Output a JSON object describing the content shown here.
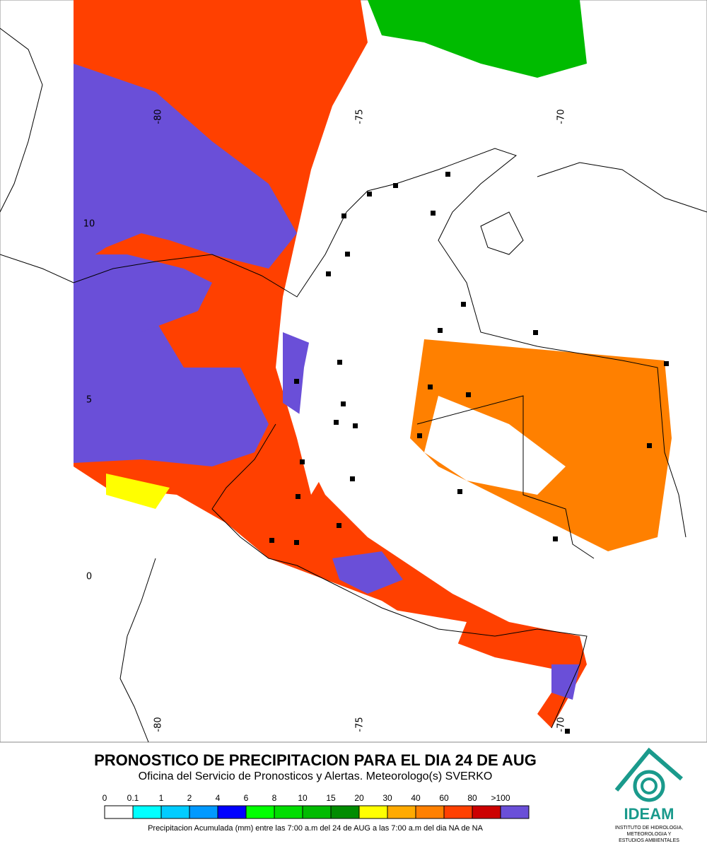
{
  "map": {
    "lon_labels_top": [
      "-80",
      "-75",
      "-70"
    ],
    "lon_labels_bottom": [
      "-80",
      "-75",
      "-70"
    ],
    "lat_labels": [
      "10",
      "5",
      "0"
    ]
  },
  "header": {
    "title": "PRONOSTICO DE PRECIPITACION PARA EL DIA 24 DE AUG",
    "subtitle": "Oficina del Servicio de Pronosticos y Alertas. Meteorologo(s) SVERKO"
  },
  "legend": {
    "items": [
      {
        "label": "0",
        "color": "#ffffff"
      },
      {
        "label": "0.1",
        "color": "#00ffff"
      },
      {
        "label": "1",
        "color": "#00ccff"
      },
      {
        "label": "2",
        "color": "#0099ff"
      },
      {
        "label": "4",
        "color": "#0000ff"
      },
      {
        "label": "6",
        "color": "#00ff00"
      },
      {
        "label": "8",
        "color": "#00dd00"
      },
      {
        "label": "10",
        "color": "#00bb00"
      },
      {
        "label": "15",
        "color": "#008c00"
      },
      {
        "label": "20",
        "color": "#ffff00"
      },
      {
        "label": "30",
        "color": "#ffaa00"
      },
      {
        "label": "40",
        "color": "#ff8000"
      },
      {
        "label": "60",
        "color": "#ff4000"
      },
      {
        "label": "80",
        "color": "#cc0000"
      },
      {
        "label": ">100",
        "color": "#6a4fd8"
      }
    ],
    "caption": "Precipitacion Acumulada (mm) entre las 7:00 a.m del 24 de AUG a las 7:00 a.m del dia NA de NA"
  },
  "logo": {
    "name": "IDEAM",
    "line1": "INSTITUTO DE HIDROLOGIA,",
    "line2": "METEOROLOGIA Y",
    "line3": "ESTUDIOS AMBIENTALES"
  }
}
